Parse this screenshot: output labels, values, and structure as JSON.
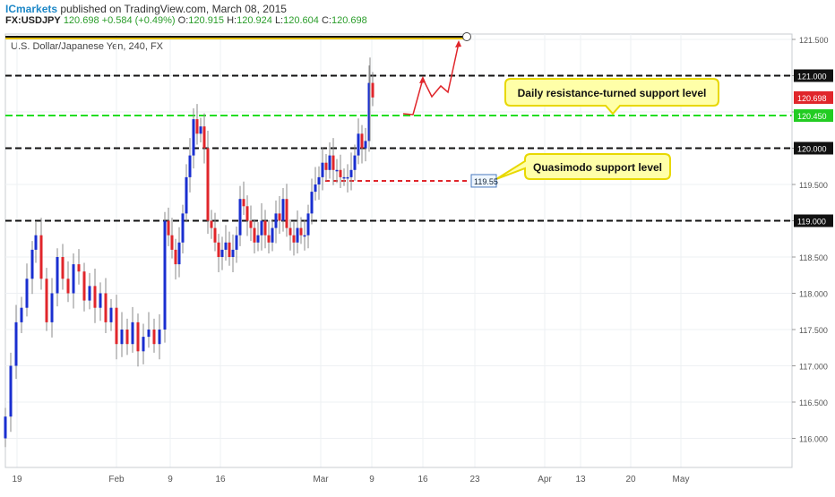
{
  "header": {
    "brand": "ICmarkets",
    "published": " published on TradingView.com, March 08, 2015",
    "symbol": "FX:USDJPY",
    "last": "120.698",
    "change": "+0.584 (+0.49%)",
    "o_label": "O:",
    "o_value": "120.915",
    "h_label": "H:",
    "h_value": "120.924",
    "l_label": "L:",
    "l_value": "120.604",
    "c_label": "C:",
    "c_value": "120.698"
  },
  "chart_data": {
    "type": "candlestick",
    "title": "U.S. Dollar/Japanese Yen, 240, FX",
    "ylim": [
      115.6,
      121.6
    ],
    "y_ticks": [
      "121.500",
      "121.000",
      "120.500",
      "120.000",
      "119.500",
      "119.000",
      "118.500",
      "118.000",
      "117.500",
      "117.000",
      "116.500",
      "116.000"
    ],
    "x_ticks": [
      "19",
      "Feb",
      "9",
      "16",
      "Mar",
      "9",
      "16",
      "23",
      "Apr",
      "13",
      "20",
      "May"
    ],
    "last_price_label": "120.698",
    "green_level_label": "120.450",
    "horizontal_levels": [
      {
        "price": 121.0,
        "style": "black-dashed"
      },
      {
        "price": 120.45,
        "style": "green-dashed"
      },
      {
        "price": 120.0,
        "style": "black-dashed"
      },
      {
        "price": 119.0,
        "style": "black-dashed"
      },
      {
        "price": 119.55,
        "style": "red-dashed"
      }
    ],
    "annotations": [
      {
        "text": "Daily resistance-turned support level"
      },
      {
        "text": "Quasimodo support level"
      },
      {
        "text": "119.55"
      }
    ],
    "colors": {
      "up": "#1a2fd0",
      "down": "#e0262b",
      "green_level": "#22dd22",
      "callout_bg": "#ffffa8",
      "callout_border": "#e8d800"
    }
  }
}
